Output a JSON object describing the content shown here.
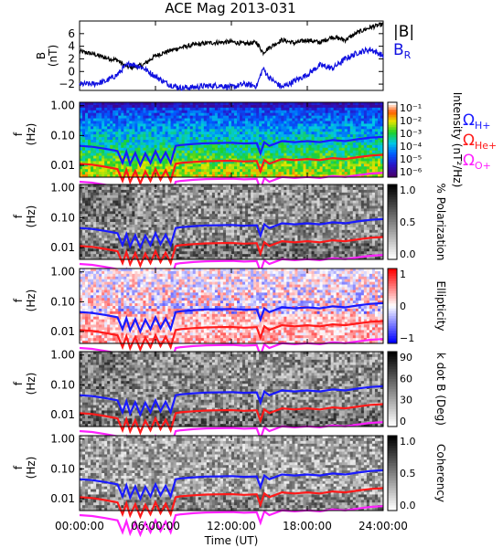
{
  "title": "ACE Mag 2013-031",
  "colors": {
    "btotal": "#000000",
    "br": "#1010e0",
    "h_plus": "#1a1aff",
    "he_plus": "#ff1a1a",
    "o_plus": "#ff20ff"
  },
  "time_axis": {
    "label": "Time (UT)",
    "ticks": [
      "00:00:00",
      "06:00:00",
      "12:00:00",
      "18:00:00",
      "24:00:00"
    ],
    "range_hours": [
      0,
      24
    ]
  },
  "chart_data": [
    {
      "type": "line",
      "panel": "field",
      "ylabel": "B (nT)",
      "ylim": [
        -3,
        8
      ],
      "yticks": [
        "6",
        "4",
        "2",
        "0",
        "−2"
      ],
      "legend": [
        "|B|",
        "B"
      ],
      "legend_sub": "R",
      "series": [
        {
          "name": "|B|",
          "x": [
            0,
            1,
            2,
            3,
            3.5,
            4,
            5,
            6,
            7,
            8,
            9,
            10,
            11,
            12,
            13,
            14,
            14.5,
            15,
            16,
            17,
            18,
            19,
            20,
            21,
            22,
            23,
            24
          ],
          "y": [
            3.2,
            2.8,
            2.2,
            1.8,
            1.0,
            0.6,
            1.0,
            2.5,
            3.2,
            3.8,
            4.2,
            4.5,
            4.6,
            4.7,
            4.4,
            4.6,
            3.0,
            3.8,
            5.0,
            4.5,
            5.0,
            4.6,
            5.5,
            5.0,
            6.2,
            7.0,
            7.5
          ]
        },
        {
          "name": "B",
          "x": [
            0,
            1,
            2,
            3,
            3.5,
            4,
            5,
            6,
            7,
            8,
            9,
            10,
            11,
            12,
            13,
            14,
            14.5,
            15,
            16,
            17,
            18,
            19,
            20,
            21,
            22,
            23,
            24
          ],
          "y": [
            -2.0,
            -2.0,
            -1.6,
            -0.5,
            0.6,
            1.3,
            0.6,
            -0.8,
            -2.0,
            -2.6,
            -2.5,
            -2.3,
            -2.2,
            -2.5,
            -2.0,
            -2.3,
            0.5,
            -1.0,
            -2.5,
            -1.5,
            -0.5,
            1.0,
            0.5,
            2.0,
            3.0,
            3.5,
            2.5
          ]
        }
      ]
    },
    {
      "type": "heatmap",
      "panel": "intensity",
      "ylabel": "f (Hz)",
      "yticks": [
        "1.00",
        "0.10",
        "0.01"
      ],
      "colorbar_label": "Intensity (nT²/Hz)",
      "colorbar_ticks": [
        "10⁻¹",
        "10⁻²",
        "10⁻³",
        "10⁻⁴",
        "10⁻⁵",
        "10⁻⁶"
      ],
      "legend": [
        {
          "label": "Ω",
          "sub": "H+",
          "color": "#1a1aff"
        },
        {
          "label": "Ω",
          "sub": "He+",
          "color": "#ff1a1a"
        },
        {
          "label": "Ω",
          "sub": "O+",
          "color": "#ff20ff"
        }
      ]
    },
    {
      "type": "heatmap",
      "panel": "polarization",
      "ylabel": "f (Hz)",
      "yticks": [
        "1.00",
        "0.10",
        "0.01"
      ],
      "colorbar_label": "% Polarization",
      "colorbar_ticks": [
        "1.0",
        "0.5",
        "0.0"
      ]
    },
    {
      "type": "heatmap",
      "panel": "ellipticity",
      "ylabel": "f (Hz)",
      "yticks": [
        "1.00",
        "0.10",
        "0.01"
      ],
      "colorbar_label": "Ellipticity",
      "colorbar_ticks": [
        "1",
        "0",
        "−1"
      ]
    },
    {
      "type": "heatmap",
      "panel": "kdotb",
      "ylabel": "f (Hz)",
      "yticks": [
        "1.00",
        "0.10",
        "0.01"
      ],
      "colorbar_label": "k dot B (Deg)",
      "colorbar_ticks": [
        "90",
        "60",
        "30",
        "0"
      ]
    },
    {
      "type": "heatmap",
      "panel": "coherency",
      "ylabel": "f (Hz)",
      "yticks": [
        "1.00",
        "0.10",
        "0.01"
      ],
      "colorbar_label": "Coherency",
      "colorbar_ticks": [
        "1.0",
        "0.5",
        "0.0"
      ]
    }
  ],
  "gyro_lines": {
    "x": [
      0,
      1,
      2,
      3,
      3.4,
      3.7,
      4.0,
      4.4,
      4.8,
      5.2,
      5.6,
      6.0,
      6.4,
      6.8,
      7.2,
      7.6,
      8,
      9,
      10,
      11,
      12,
      13,
      14,
      14.3,
      14.6,
      15,
      16,
      17,
      18,
      19,
      20,
      21,
      22,
      23,
      24
    ],
    "h_plus_hz": [
      0.045,
      0.042,
      0.036,
      0.03,
      0.012,
      0.028,
      0.011,
      0.026,
      0.01,
      0.025,
      0.012,
      0.03,
      0.013,
      0.027,
      0.012,
      0.045,
      0.048,
      0.052,
      0.055,
      0.056,
      0.057,
      0.054,
      0.056,
      0.025,
      0.06,
      0.045,
      0.065,
      0.06,
      0.065,
      0.06,
      0.07,
      0.065,
      0.075,
      0.085,
      0.09
    ]
  }
}
